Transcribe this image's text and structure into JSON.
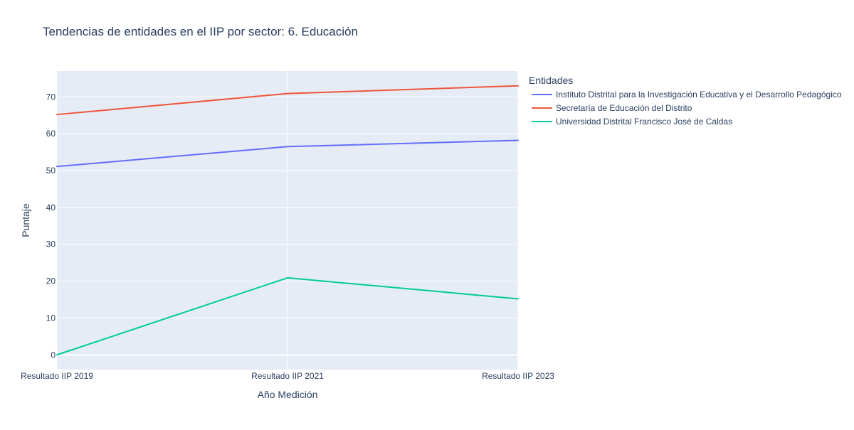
{
  "chart_data": {
    "type": "line",
    "title": "Tendencias de entidades en el IIP por sector: 6. Educación",
    "xlabel": "Año Medición",
    "ylabel": "Puntaje",
    "categories": [
      "Resultado IIP 2019",
      "Resultado IIP 2021",
      "Resultado IIP 2023"
    ],
    "ylim": [
      -4,
      77
    ],
    "yticks": [
      0,
      10,
      20,
      30,
      40,
      50,
      60,
      70
    ],
    "grid": true,
    "legend_title": "Entidades",
    "legend_position": "right",
    "series": [
      {
        "name": "Instituto Distrital para la Investigación Educativa y el Desarrollo Pedagógico",
        "color": "#636efa",
        "values": [
          51.1,
          56.5,
          58.2
        ]
      },
      {
        "name": "Secretaría de Educación del Distrito",
        "color": "#ef553b",
        "values": [
          65.2,
          70.9,
          73.0
        ]
      },
      {
        "name": "Universidad Distrital Francisco José de Caldas",
        "color": "#00cc96",
        "values": [
          0.0,
          20.9,
          15.2
        ]
      }
    ]
  }
}
